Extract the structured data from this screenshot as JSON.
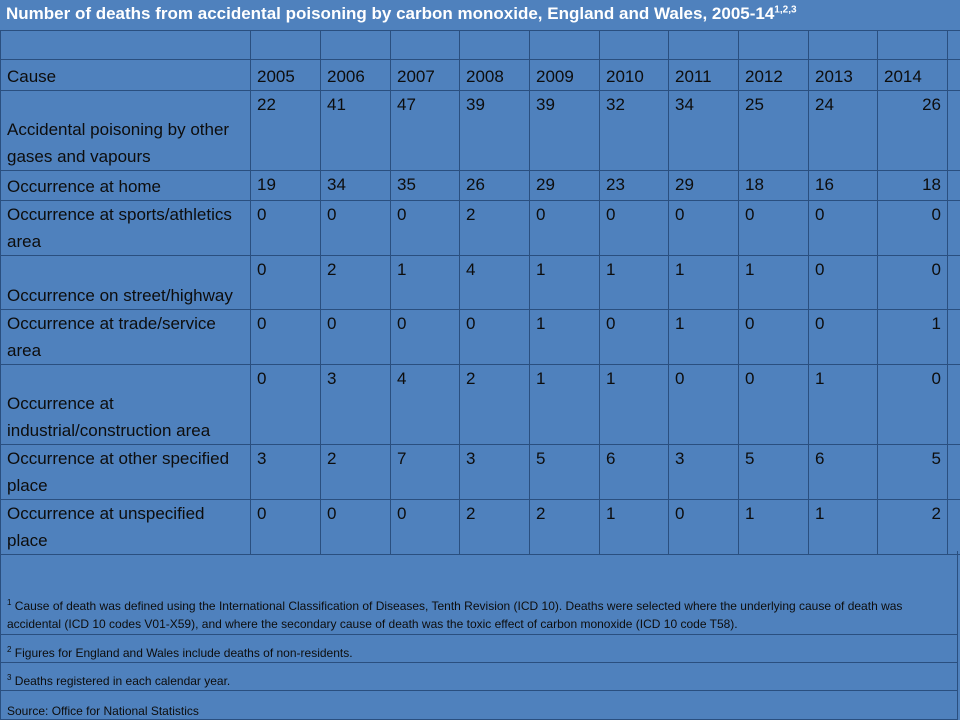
{
  "title": {
    "text": "Number of deaths from accidental poisoning by carbon monoxide, England and Wales, 2005-14",
    "superscript": "1,2,3"
  },
  "chart_data": {
    "type": "table",
    "title": "Number of deaths from accidental poisoning by carbon monoxide, England and Wales, 2005-14",
    "header_label": "Cause",
    "years": [
      "2005",
      "2006",
      "2007",
      "2008",
      "2009",
      "2010",
      "2011",
      "2012",
      "2013",
      "2014"
    ],
    "rows": [
      {
        "cause": "Accidental poisoning by other gases and vapours",
        "values": [
          "22",
          "41",
          "47",
          "39",
          "39",
          "32",
          "34",
          "25",
          "24",
          "26"
        ]
      },
      {
        "cause": "Occurrence at home",
        "values": [
          "19",
          "34",
          "35",
          "26",
          "29",
          "23",
          "29",
          "18",
          "16",
          "18"
        ]
      },
      {
        "cause": "Occurrence at sports/athletics area",
        "values": [
          "0",
          "0",
          "0",
          "2",
          "0",
          "0",
          "0",
          "0",
          "0",
          "0"
        ]
      },
      {
        "cause": "Occurrence on street/highway",
        "values": [
          "0",
          "2",
          "1",
          "4",
          "1",
          "1",
          "1",
          "1",
          "0",
          "0"
        ]
      },
      {
        "cause": "Occurrence at trade/service area",
        "values": [
          "0",
          "0",
          "0",
          "0",
          "1",
          "0",
          "1",
          "0",
          "0",
          "1"
        ]
      },
      {
        "cause": "Occurrence at industrial/construction area",
        "values": [
          "0",
          "3",
          "4",
          "2",
          "1",
          "1",
          "0",
          "0",
          "1",
          "0"
        ]
      },
      {
        "cause": "Occurrence at other specified place",
        "values": [
          "3",
          "2",
          "7",
          "3",
          "5",
          "6",
          "3",
          "5",
          "6",
          "5"
        ]
      },
      {
        "cause": "Occurrence at unspecified place",
        "values": [
          "0",
          "0",
          "0",
          "2",
          "2",
          "1",
          "0",
          "1",
          "1",
          "2"
        ]
      }
    ]
  },
  "notes": {
    "n1_mark": "1",
    "n1": "Cause of death was defined using the International Classification of Diseases, Tenth Revision (ICD 10). Deaths were selected where the underlying cause of death was accidental (ICD 10 codes V01-X59), and where the secondary cause of death was the toxic effect of carbon monoxide (ICD 10 code T58).",
    "n2_mark": "2",
    "n2": "Figures for England and Wales include deaths of non-residents.",
    "n3_mark": "3",
    "n3": "Deaths registered in each calendar year.",
    "source": "Source: Office for National Statistics"
  },
  "colors": {
    "background": "#4f81bd",
    "grid": "#2a4f7f",
    "title_text": "#ffffff"
  }
}
